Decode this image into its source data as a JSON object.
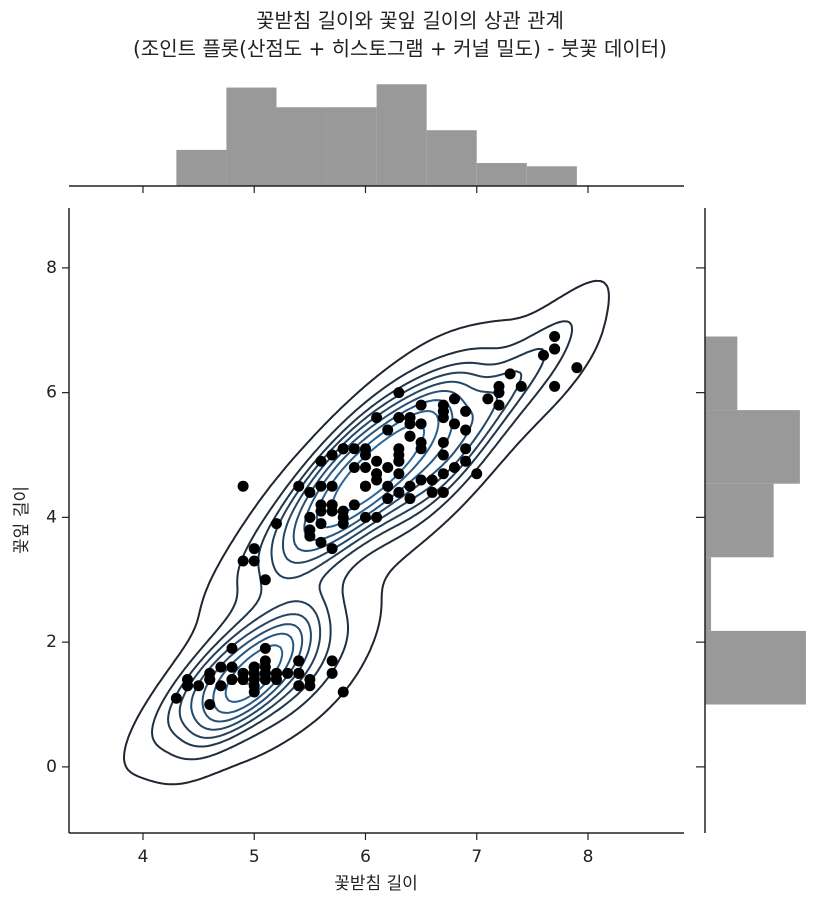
{
  "chart_data": [
    {
      "type": "scatter",
      "title": "꽃받침 길이와 꽃잎 길이의 상관 관계",
      "subtitle": "(조인트 플롯(산점도 + 히스토그램 + 커널 밀도) - 붓꽃 데이터)",
      "x_label": "꽃받침 길이",
      "y_label": "꽃잎 길이",
      "x": [
        5.1,
        4.9,
        4.7,
        4.6,
        5.0,
        5.4,
        4.6,
        5.0,
        4.4,
        4.9,
        5.4,
        4.8,
        4.8,
        4.3,
        5.8,
        5.7,
        5.4,
        5.1,
        5.7,
        5.1,
        5.4,
        5.1,
        4.6,
        5.1,
        4.8,
        5.0,
        5.0,
        5.2,
        5.2,
        4.7,
        4.8,
        5.4,
        5.2,
        5.5,
        4.9,
        5.0,
        5.5,
        4.9,
        4.4,
        5.1,
        5.0,
        4.5,
        4.4,
        5.0,
        5.1,
        4.8,
        5.1,
        4.6,
        5.3,
        5.0,
        7.0,
        6.4,
        6.9,
        5.5,
        6.5,
        5.7,
        6.3,
        4.9,
        6.6,
        5.2,
        5.0,
        5.9,
        6.0,
        6.1,
        5.6,
        6.7,
        5.6,
        5.8,
        6.2,
        5.6,
        5.9,
        6.1,
        6.3,
        6.1,
        6.4,
        6.6,
        6.8,
        6.7,
        6.0,
        5.7,
        5.5,
        5.5,
        5.8,
        6.0,
        5.4,
        6.0,
        6.7,
        6.3,
        5.6,
        5.5,
        5.5,
        6.1,
        5.8,
        5.0,
        5.6,
        5.7,
        5.7,
        6.2,
        5.1,
        5.7,
        6.3,
        5.8,
        7.1,
        6.3,
        6.5,
        7.6,
        4.9,
        7.3,
        6.7,
        7.2,
        6.5,
        6.4,
        6.8,
        5.7,
        5.8,
        6.4,
        6.5,
        7.7,
        7.7,
        6.0,
        6.9,
        5.6,
        7.7,
        6.3,
        6.7,
        7.2,
        6.2,
        6.1,
        6.4,
        7.2,
        7.4,
        7.9,
        6.4,
        6.3,
        6.1,
        7.7,
        6.3,
        6.4,
        6.0,
        6.9,
        6.7,
        6.9,
        5.8,
        6.8,
        6.7,
        6.7,
        6.3,
        6.5,
        6.2,
        5.9
      ],
      "y": [
        1.4,
        1.4,
        1.3,
        1.5,
        1.4,
        1.7,
        1.4,
        1.5,
        1.4,
        1.5,
        1.5,
        1.6,
        1.4,
        1.1,
        1.2,
        1.5,
        1.3,
        1.4,
        1.7,
        1.5,
        1.7,
        1.5,
        1.0,
        1.7,
        1.9,
        1.6,
        1.6,
        1.5,
        1.4,
        1.6,
        1.6,
        1.5,
        1.5,
        1.4,
        1.5,
        1.2,
        1.3,
        1.4,
        1.3,
        1.5,
        1.3,
        1.3,
        1.3,
        1.6,
        1.9,
        1.4,
        1.6,
        1.4,
        1.5,
        1.4,
        4.7,
        4.5,
        4.9,
        4.0,
        4.6,
        4.5,
        4.7,
        3.3,
        4.6,
        3.9,
        3.5,
        4.2,
        4.0,
        4.7,
        3.6,
        4.4,
        4.5,
        4.1,
        4.5,
        3.9,
        4.8,
        4.0,
        4.9,
        4.7,
        4.3,
        4.4,
        4.8,
        5.0,
        4.5,
        3.5,
        3.8,
        3.7,
        3.9,
        5.1,
        4.5,
        4.5,
        4.7,
        4.4,
        4.1,
        4.0,
        4.4,
        4.6,
        4.0,
        3.3,
        4.2,
        4.2,
        4.2,
        4.3,
        3.0,
        4.1,
        6.0,
        5.1,
        5.9,
        5.6,
        5.8,
        6.6,
        4.5,
        6.3,
        5.8,
        6.1,
        5.1,
        5.3,
        5.5,
        5.0,
        5.1,
        5.3,
        5.5,
        6.7,
        6.9,
        5.0,
        5.7,
        4.9,
        6.7,
        4.9,
        5.7,
        6.0,
        4.8,
        4.9,
        5.6,
        5.8,
        6.1,
        6.4,
        5.6,
        5.1,
        5.6,
        6.1,
        5.6,
        5.5,
        4.8,
        5.4,
        5.6,
        5.1,
        5.1,
        5.9,
        5.7,
        5.2,
        5.0,
        5.2,
        5.4,
        5.1
      ],
      "color": "#000000",
      "xlim": [
        3.335,
        8.863
      ],
      "ylim": [
        -1.06,
        8.96
      ],
      "xticks": [
        4,
        5,
        6,
        7,
        8
      ],
      "yticks": [
        0,
        2,
        4,
        6,
        8
      ],
      "kde": true,
      "kde_levels": 10,
      "kde_thresh": 0.05
    },
    {
      "type": "histogram",
      "orientation": "vertical",
      "bins": [
        4.3,
        4.75,
        5.2,
        5.65,
        6.1,
        6.55,
        7.0,
        7.45,
        7.9
      ],
      "counts": [
        11,
        30,
        24,
        24,
        31,
        17,
        7,
        6
      ],
      "ylim": [
        0,
        32
      ],
      "color": "#999999"
    },
    {
      "type": "histogram",
      "orientation": "horizontal",
      "bins": [
        1.0,
        2.18,
        3.36,
        4.54,
        5.72,
        6.9
      ],
      "counts": [
        50,
        3,
        34,
        47,
        16
      ],
      "xlim": [
        0,
        52
      ],
      "color": "#999999"
    }
  ]
}
